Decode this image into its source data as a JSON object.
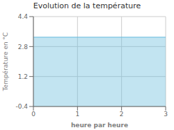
{
  "chart_data": {
    "type": "area",
    "title": "Evolution de la température",
    "xlabel": "heure par heure",
    "ylabel": "Température en °C",
    "x": [
      0,
      3
    ],
    "values": [
      3.3,
      3.3
    ],
    "color": "#66bbdd",
    "xlim": [
      0,
      3
    ],
    "ylim": [
      -0.4,
      4.4
    ],
    "xticks": [
      0,
      1,
      2,
      3
    ],
    "yticks": [
      -0.4,
      1.2,
      2.8,
      4.4
    ],
    "grid": true
  }
}
